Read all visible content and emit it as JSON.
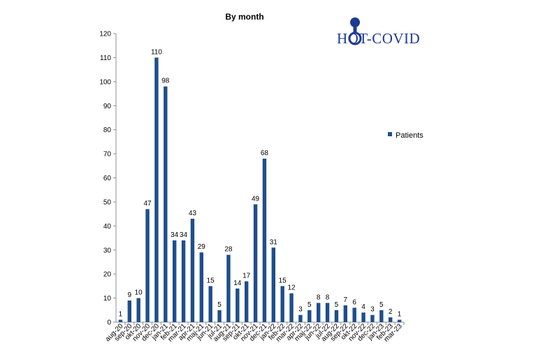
{
  "logo": {
    "text": "HOT-COVID",
    "color": "#1f3a93"
  },
  "chart_data": {
    "type": "bar",
    "title": "By month",
    "xlabel": "",
    "ylabel": "",
    "ylim": [
      0,
      120
    ],
    "yticks": [
      0,
      10,
      20,
      30,
      40,
      50,
      60,
      70,
      80,
      90,
      100,
      110,
      120
    ],
    "grid": false,
    "legend_position": "right",
    "bar_color": "#1f4e8c",
    "categories": [
      "aug-20",
      "sep-20",
      "okt-20",
      "nov-20",
      "dec-20",
      "jan-21",
      "feb-21",
      "mar-21",
      "apr-21",
      "maj-21",
      "jun-21",
      "jul-21",
      "aug-21",
      "sep-21",
      "okt-21",
      "nov-21",
      "dec-21",
      "jan-22",
      "feb-22",
      "mar-22",
      "apr-22",
      "maj-22",
      "jun-22",
      "jul-22",
      "aug-22",
      "sep-22",
      "okt-22",
      "nov-22",
      "dec-22",
      "jan-23",
      "feb-23",
      "mar-23"
    ],
    "series": [
      {
        "name": "Patients",
        "values": [
          1,
          9,
          10,
          47,
          110,
          98,
          34,
          34,
          43,
          29,
          15,
          5,
          28,
          14,
          17,
          49,
          68,
          31,
          15,
          12,
          3,
          5,
          8,
          8,
          5,
          7,
          6,
          4,
          3,
          5,
          2,
          1
        ]
      }
    ]
  }
}
